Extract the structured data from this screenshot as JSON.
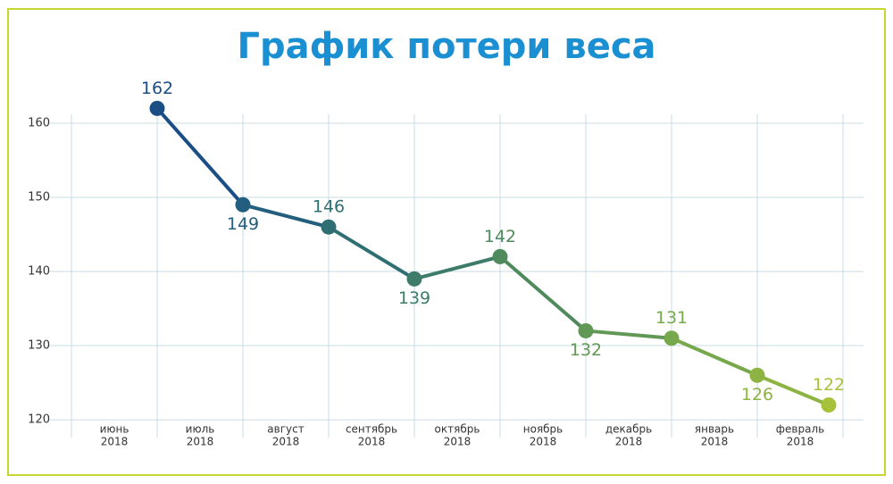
{
  "chart_data": {
    "type": "line",
    "title": "График потери веса",
    "categories": [
      [
        "июнь",
        "2018"
      ],
      [
        "июль",
        "2018"
      ],
      [
        "август",
        "2018"
      ],
      [
        "сентябрь",
        "2018"
      ],
      [
        "октябрь",
        "2018"
      ],
      [
        "ноябрь",
        "2018"
      ],
      [
        "декабрь",
        "2018"
      ],
      [
        "январь",
        "2018"
      ],
      [
        "февраль",
        "2018"
      ]
    ],
    "values": [
      162,
      149,
      146,
      139,
      142,
      132,
      131,
      126,
      122
    ],
    "point_colors": [
      "#1b4e85",
      "#235e7e",
      "#2f6e72",
      "#3d7c68",
      "#4f8a5c",
      "#629855",
      "#77a84c",
      "#8db443",
      "#a5c23a"
    ],
    "ylim": [
      117.6,
      161.2
    ],
    "yticks": [
      120,
      130,
      140,
      150,
      160
    ],
    "grid": true
  }
}
